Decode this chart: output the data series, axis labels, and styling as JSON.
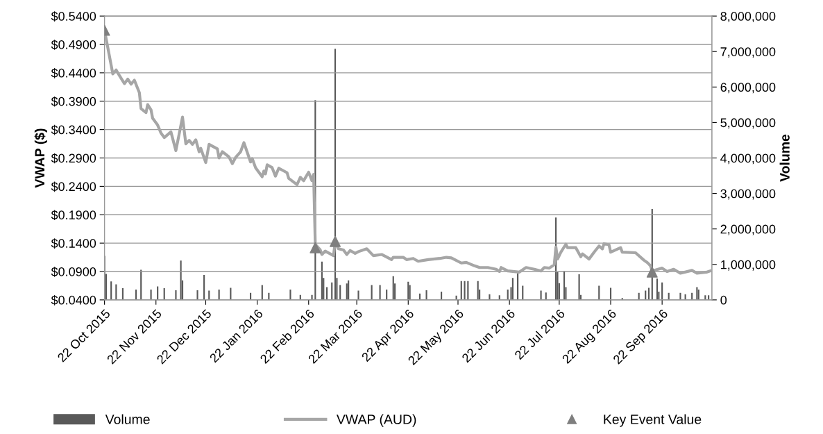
{
  "chart_data": {
    "type": "line",
    "ylabel": "VWAP ($)",
    "y2label": "Volume",
    "xlim": [
      "2015-10-22",
      "2016-10-22"
    ],
    "xticks": [
      {
        "value": "2015-10-22",
        "label": "22 Oct 2015"
      },
      {
        "value": "2015-11-22",
        "label": "22 Nov 2015"
      },
      {
        "value": "2015-12-22",
        "label": "22 Dec 2015"
      },
      {
        "value": "2016-01-22",
        "label": "22 Jan 2016"
      },
      {
        "value": "2016-02-22",
        "label": "22 Feb 2016"
      },
      {
        "value": "2016-03-22",
        "label": "22 Mar 2016"
      },
      {
        "value": "2016-04-22",
        "label": "22 Apr 2016"
      },
      {
        "value": "2016-05-22",
        "label": "22 May 2016"
      },
      {
        "value": "2016-06-22",
        "label": "22 Jun 2016"
      },
      {
        "value": "2016-07-22",
        "label": "22 Jul 2016"
      },
      {
        "value": "2016-08-22",
        "label": "22 Aug 2016"
      },
      {
        "value": "2016-09-22",
        "label": "22 Sep 2016"
      }
    ],
    "ylim": [
      0.04,
      0.54
    ],
    "yticks": [
      {
        "value": 0.04,
        "label": "$0.0400"
      },
      {
        "value": 0.09,
        "label": "$0.0900"
      },
      {
        "value": 0.14,
        "label": "$0.1400"
      },
      {
        "value": 0.19,
        "label": "$0.1900"
      },
      {
        "value": 0.24,
        "label": "$0.2400"
      },
      {
        "value": 0.29,
        "label": "$0.2900"
      },
      {
        "value": 0.34,
        "label": "$0.3400"
      },
      {
        "value": 0.39,
        "label": "$0.3900"
      },
      {
        "value": 0.44,
        "label": "$0.4400"
      },
      {
        "value": 0.49,
        "label": "$0.4900"
      },
      {
        "value": 0.54,
        "label": "$0.5400"
      }
    ],
    "y2lim": [
      0,
      8000000
    ],
    "y2ticks": [
      0,
      {
        "value": 1000000,
        "label": "1,000,000"
      },
      {
        "value": 2000000,
        "label": "2,000,000"
      },
      {
        "value": 3000000,
        "label": "3,000,000"
      },
      {
        "value": 4000000,
        "label": "4,000,000"
      },
      {
        "value": 5000000,
        "label": "5,000,000"
      },
      {
        "value": 6000000,
        "label": "6,000,000"
      },
      {
        "value": 7000000,
        "label": "7,000,000"
      },
      {
        "value": 8000000,
        "label": "8,000,000"
      }
    ],
    "grid": "y",
    "legend": "bottom",
    "series": [
      {
        "name": "Volume",
        "type": "bar",
        "axis": "y2",
        "color": "#595959",
        "x": [
          "2015-10-22",
          "2015-10-23",
          "2015-10-26",
          "2015-10-29",
          "2015-11-02",
          "2015-11-10",
          "2015-11-13",
          "2015-11-19",
          "2015-11-23",
          "2015-11-27",
          "2015-12-04",
          "2015-12-07",
          "2015-12-08",
          "2015-12-17",
          "2015-12-21",
          "2015-12-24",
          "2015-12-30",
          "2016-01-06",
          "2016-01-18",
          "2016-01-25",
          "2016-01-29",
          "2016-02-11",
          "2016-02-17",
          "2016-02-24",
          "2016-02-26",
          "2016-03-01",
          "2016-03-02",
          "2016-03-04",
          "2016-03-07",
          "2016-03-09",
          "2016-03-10",
          "2016-03-12",
          "2016-03-16",
          "2016-03-17",
          "2016-03-23",
          "2016-03-31",
          "2016-04-05",
          "2016-04-09",
          "2016-04-13",
          "2016-04-14",
          "2016-04-22",
          "2016-04-23",
          "2016-04-29",
          "2016-05-03",
          "2016-05-12",
          "2016-05-21",
          "2016-05-24",
          "2016-05-26",
          "2016-05-28",
          "2016-06-03",
          "2016-06-04",
          "2016-06-10",
          "2016-06-16",
          "2016-06-21",
          "2016-06-23",
          "2016-06-24",
          "2016-06-27",
          "2016-06-30",
          "2016-07-11",
          "2016-07-14",
          "2016-07-20",
          "2016-07-21",
          "2016-07-22",
          "2016-07-25",
          "2016-07-26",
          "2016-08-03",
          "2016-08-04",
          "2016-08-15",
          "2016-08-22",
          "2016-08-29",
          "2016-09-08",
          "2016-09-12",
          "2016-09-14",
          "2016-09-16",
          "2016-09-19",
          "2016-09-20",
          "2016-09-22",
          "2016-09-26",
          "2016-10-03",
          "2016-10-06",
          "2016-10-10",
          "2016-10-13",
          "2016-10-14",
          "2016-10-18",
          "2016-10-20"
        ],
        "values": [
          1240000,
          730000,
          520000,
          440000,
          330000,
          290000,
          850000,
          290000,
          380000,
          330000,
          270000,
          1110000,
          550000,
          270000,
          700000,
          260000,
          290000,
          340000,
          200000,
          420000,
          200000,
          290000,
          140000,
          140000,
          5630000,
          1080000,
          620000,
          360000,
          490000,
          7080000,
          620000,
          420000,
          460000,
          550000,
          260000,
          420000,
          420000,
          290000,
          670000,
          460000,
          510000,
          420000,
          180000,
          270000,
          230000,
          120000,
          530000,
          530000,
          530000,
          530000,
          290000,
          160000,
          130000,
          290000,
          360000,
          620000,
          750000,
          400000,
          260000,
          210000,
          2320000,
          780000,
          470000,
          820000,
          360000,
          720000,
          140000,
          400000,
          340000,
          50000,
          200000,
          260000,
          340000,
          2560000,
          600000,
          230000,
          490000,
          200000,
          200000,
          160000,
          200000,
          360000,
          290000,
          130000,
          130000
        ]
      },
      {
        "name": "VWAP (AUD)",
        "color": "#a6a6a6",
        "marker": "none",
        "x": [
          "2015-10-22",
          "2015-10-27",
          "2015-10-29",
          "2015-10-31",
          "2015-11-03",
          "2015-11-05",
          "2015-11-07",
          "2015-11-09",
          "2015-11-12",
          "2015-11-13",
          "2015-11-16",
          "2015-11-17",
          "2015-11-19",
          "2015-11-20",
          "2015-11-23",
          "2015-11-25",
          "2015-11-27",
          "2015-12-01",
          "2015-12-04",
          "2015-12-08",
          "2015-12-10",
          "2015-12-12",
          "2015-12-14",
          "2015-12-16",
          "2015-12-18",
          "2015-12-19",
          "2015-12-22",
          "2015-12-24",
          "2015-12-29",
          "2015-12-30",
          "2016-01-01",
          "2016-01-05",
          "2016-01-07",
          "2016-01-09",
          "2016-01-12",
          "2016-01-14",
          "2016-01-18",
          "2016-01-19",
          "2016-01-21",
          "2016-01-25",
          "2016-01-26",
          "2016-01-27",
          "2016-01-28",
          "2016-01-31",
          "2016-02-02",
          "2016-02-04",
          "2016-02-09",
          "2016-02-10",
          "2016-02-15",
          "2016-02-17",
          "2016-02-19",
          "2016-02-22",
          "2016-02-24",
          "2016-02-25",
          "2016-02-26",
          "2016-02-29",
          "2016-03-01",
          "2016-03-03",
          "2016-03-08",
          "2016-03-09",
          "2016-03-11",
          "2016-03-14",
          "2016-03-16",
          "2016-03-18",
          "2016-03-21",
          "2016-03-23",
          "2016-03-28",
          "2016-04-01",
          "2016-04-06",
          "2016-04-12",
          "2016-04-13",
          "2016-04-19",
          "2016-04-21",
          "2016-04-25",
          "2016-04-28",
          "2016-05-04",
          "2016-05-11",
          "2016-05-15",
          "2016-05-18",
          "2016-05-24",
          "2016-05-27",
          "2016-06-01",
          "2016-06-04",
          "2016-06-09",
          "2016-06-14",
          "2016-06-16",
          "2016-06-17",
          "2016-06-21",
          "2016-06-28",
          "2016-07-02",
          "2016-07-07",
          "2016-07-11",
          "2016-07-13",
          "2016-07-16",
          "2016-07-19",
          "2016-07-20",
          "2016-07-21",
          "2016-07-23",
          "2016-07-26",
          "2016-07-27",
          "2016-08-01",
          "2016-08-04",
          "2016-08-05",
          "2016-08-09",
          "2016-08-12",
          "2016-08-15",
          "2016-08-17",
          "2016-08-18",
          "2016-08-21",
          "2016-08-22",
          "2016-08-28",
          "2016-08-29",
          "2016-09-06",
          "2016-09-11",
          "2016-09-13",
          "2016-09-15",
          "2016-09-16",
          "2016-09-22",
          "2016-09-25",
          "2016-09-29",
          "2016-10-03",
          "2016-10-10",
          "2016-10-13",
          "2016-10-19",
          "2016-10-22"
        ],
        "values": [
          0.515,
          0.438,
          0.445,
          0.435,
          0.421,
          0.429,
          0.42,
          0.427,
          0.405,
          0.377,
          0.37,
          0.384,
          0.375,
          0.36,
          0.348,
          0.334,
          0.326,
          0.336,
          0.303,
          0.362,
          0.315,
          0.321,
          0.314,
          0.322,
          0.301,
          0.307,
          0.282,
          0.314,
          0.306,
          0.29,
          0.301,
          0.292,
          0.28,
          0.291,
          0.301,
          0.317,
          0.283,
          0.289,
          0.273,
          0.257,
          0.267,
          0.262,
          0.278,
          0.273,
          0.258,
          0.272,
          0.264,
          0.254,
          0.243,
          0.256,
          0.25,
          0.265,
          0.25,
          0.261,
          0.138,
          0.128,
          0.12,
          0.126,
          0.118,
          0.142,
          0.13,
          0.128,
          0.12,
          0.127,
          0.122,
          0.125,
          0.13,
          0.118,
          0.12,
          0.111,
          0.115,
          0.115,
          0.111,
          0.113,
          0.108,
          0.111,
          0.113,
          0.115,
          0.114,
          0.105,
          0.106,
          0.1,
          0.097,
          0.097,
          0.094,
          0.09,
          0.097,
          0.091,
          0.089,
          0.097,
          0.094,
          0.091,
          0.097,
          0.096,
          0.102,
          0.133,
          0.112,
          0.124,
          0.138,
          0.132,
          0.132,
          0.116,
          0.121,
          0.112,
          0.124,
          0.135,
          0.13,
          0.139,
          0.137,
          0.124,
          0.132,
          0.124,
          0.123,
          0.11,
          0.106,
          0.1,
          0.091,
          0.096,
          0.09,
          0.094,
          0.087,
          0.092,
          0.087,
          0.089,
          0.092
        ]
      },
      {
        "name": "Key Event Value",
        "type": "scatter",
        "color": "#7f7f7f",
        "marker": "triangle",
        "x": [
          "2015-10-22",
          "2016-02-26",
          "2016-03-09",
          "2016-09-16"
        ],
        "values": [
          0.515,
          0.132,
          0.143,
          0.089
        ]
      }
    ]
  }
}
